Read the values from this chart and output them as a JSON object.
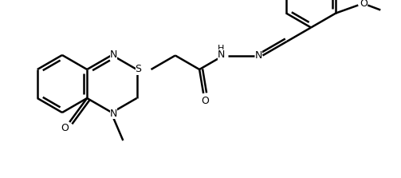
{
  "bg_color": "#ffffff",
  "line_color": "#000000",
  "line_width": 1.8,
  "font_size": 9,
  "figsize": [
    5.03,
    2.23
  ],
  "dpi": 100,
  "xlim": [
    0,
    503
  ],
  "ylim": [
    0,
    223
  ]
}
